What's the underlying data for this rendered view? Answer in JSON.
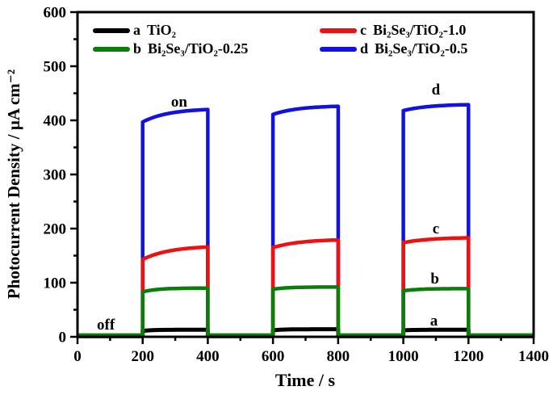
{
  "figure": {
    "background": "#ffffff"
  },
  "chart_data": {
    "type": "line",
    "title": "",
    "xlabel": "Time / s",
    "ylabel": "Photocurrent Density / μA cm⁻²",
    "xlim": [
      0,
      1400
    ],
    "ylim": [
      0,
      600
    ],
    "x_major_tick": 200,
    "x_minor_tick": 100,
    "y_major_tick": 100,
    "y_minor_tick": 50,
    "grid": false,
    "legend_position": "top-inside",
    "light_cycles": {
      "on_times": [
        200,
        600,
        1000
      ],
      "off_times": [
        400,
        800,
        1200
      ]
    },
    "series": [
      {
        "id": "a",
        "name": "TiO₂",
        "color": "#000000",
        "line_width": 5,
        "baseline": 1.0,
        "rise_tau_s": 30,
        "pulses": [
          {
            "on": 200,
            "off": 400,
            "start": 11,
            "end": 13
          },
          {
            "on": 600,
            "off": 800,
            "start": 12,
            "end": 14
          },
          {
            "on": 1000,
            "off": 1200,
            "start": 12,
            "end": 13
          }
        ]
      },
      {
        "id": "d",
        "name": "Bi₂Se₃/TiO₂-0.5",
        "color": "#1212e0",
        "line_width": 4.5,
        "baseline": 2.2,
        "rise_tau_s": 80,
        "pulses": [
          {
            "on": 200,
            "off": 400,
            "start": 397,
            "end": 420
          },
          {
            "on": 600,
            "off": 800,
            "start": 411,
            "end": 426
          },
          {
            "on": 1000,
            "off": 1200,
            "start": 418,
            "end": 429
          }
        ]
      },
      {
        "id": "c",
        "name": "Bi₂Se₃/TiO₂-1.0",
        "color": "#ee1111",
        "line_width": 4.5,
        "baseline": 2.2,
        "rise_tau_s": 85,
        "pulses": [
          {
            "on": 200,
            "off": 400,
            "start": 143,
            "end": 166
          },
          {
            "on": 600,
            "off": 800,
            "start": 165,
            "end": 179
          },
          {
            "on": 1000,
            "off": 1200,
            "start": 174,
            "end": 183
          }
        ]
      },
      {
        "id": "b",
        "name": "Bi₂Se₃/TiO₂-0.25",
        "color": "#0b7d0b",
        "line_width": 4.5,
        "baseline": 3.2,
        "rise_tau_s": 45,
        "pulses": [
          {
            "on": 200,
            "off": 400,
            "start": 83,
            "end": 90
          },
          {
            "on": 600,
            "off": 800,
            "start": 88,
            "end": 92
          },
          {
            "on": 1000,
            "off": 1200,
            "start": 85,
            "end": 89
          }
        ]
      }
    ],
    "annotations": [
      {
        "text": "on",
        "t": 312,
        "v": 433
      },
      {
        "text": "off",
        "t": 87,
        "v": 21
      },
      {
        "text": "d",
        "t": 1100,
        "v": 455
      },
      {
        "text": "c",
        "t": 1100,
        "v": 198
      },
      {
        "text": "b",
        "t": 1097,
        "v": 106
      },
      {
        "text": "a",
        "t": 1094,
        "v": 28
      }
    ]
  },
  "legend": {
    "entries": [
      {
        "key": "a",
        "label": "TiO₂",
        "color": "#000000"
      },
      {
        "key": "b",
        "label": "Bi₂Se₃/TiO₂-0.25",
        "color": "#0b7d0b"
      },
      {
        "key": "c",
        "label": "Bi₂Se₃/TiO₂-1.0",
        "color": "#ee1111"
      },
      {
        "key": "d",
        "label": "Bi₂Se₃/TiO₂-0.5",
        "color": "#1212e0"
      }
    ]
  }
}
